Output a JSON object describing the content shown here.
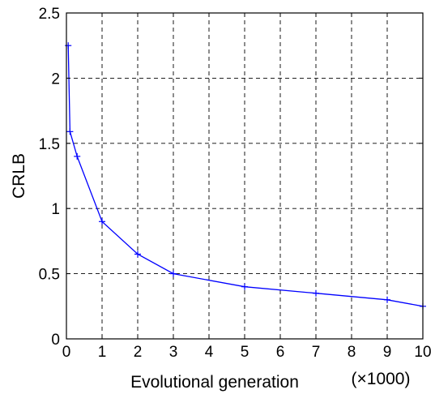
{
  "chart_data": {
    "type": "line",
    "title": "",
    "xlabel": "Evolutional generation",
    "xlabel_unit": "(×1000)",
    "ylabel": "CRLB",
    "xlim": [
      0,
      10
    ],
    "ylim": [
      0,
      2.5
    ],
    "xticks": [
      0,
      1,
      2,
      3,
      4,
      5,
      6,
      7,
      8,
      9,
      10
    ],
    "yticks": [
      0,
      0.5,
      1,
      1.5,
      2,
      2.5
    ],
    "xtick_labels": [
      "0",
      "1",
      "2",
      "3",
      "4",
      "5",
      "6",
      "7",
      "8",
      "9",
      "10"
    ],
    "ytick_labels": [
      "0",
      "0.5",
      "1",
      "1.5",
      "2",
      "2.5"
    ],
    "grid": true,
    "grid_style": "dashed",
    "series": [
      {
        "color": "#0000ff",
        "marker": "+",
        "x": [
          0.05,
          0.1,
          0.3,
          1,
          2,
          3,
          5,
          7,
          9,
          10
        ],
        "y": [
          2.25,
          1.59,
          1.4,
          0.9,
          0.65,
          0.5,
          0.4,
          0.35,
          0.3,
          0.25
        ]
      }
    ]
  }
}
